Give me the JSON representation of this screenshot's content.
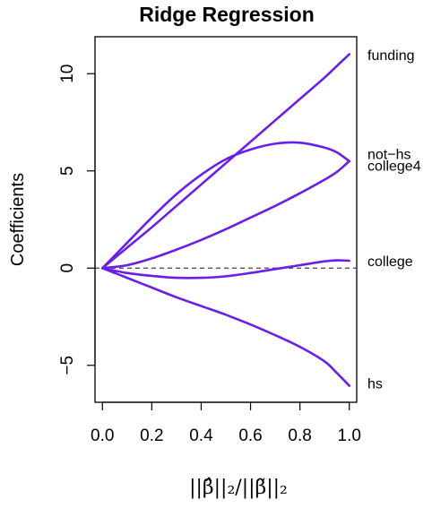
{
  "chart_data": {
    "type": "line",
    "title": "Ridge Regression",
    "xlabel": "||β̂||₂/||β̃||₂",
    "ylabel": "Coefficients",
    "xlim": [
      -0.03,
      1.03
    ],
    "ylim": [
      -6.9,
      11.9
    ],
    "x_ticks": [
      0.0,
      0.2,
      0.4,
      0.6,
      0.8,
      1.0
    ],
    "x_tick_labels": [
      "0.0",
      "0.2",
      "0.4",
      "0.6",
      "0.8",
      "1.0"
    ],
    "y_ticks": [
      -5,
      0,
      5,
      10
    ],
    "y_tick_labels": [
      "−5",
      "0",
      "5",
      "10"
    ],
    "zero_line": true,
    "line_color": "#6a1fe6",
    "x": [
      0,
      0.1,
      0.2,
      0.3,
      0.4,
      0.5,
      0.6,
      0.7,
      0.8,
      0.9,
      0.95,
      1.0
    ],
    "series": [
      {
        "name": "funding",
        "values": [
          0,
          1.05,
          2.1,
          3.2,
          4.3,
          5.4,
          6.5,
          7.6,
          8.7,
          9.8,
          10.4,
          11.0
        ]
      },
      {
        "name": "not−hs",
        "values": [
          0,
          1.3,
          2.6,
          3.8,
          4.8,
          5.6,
          6.1,
          6.4,
          6.45,
          6.2,
          5.95,
          5.5
        ]
      },
      {
        "name": "college4",
        "values": [
          0,
          0.15,
          0.5,
          0.95,
          1.45,
          2.0,
          2.6,
          3.2,
          3.85,
          4.55,
          4.95,
          5.5
        ]
      },
      {
        "name": "college",
        "values": [
          0,
          -0.25,
          -0.4,
          -0.5,
          -0.5,
          -0.42,
          -0.25,
          -0.05,
          0.15,
          0.35,
          0.4,
          0.38
        ]
      },
      {
        "name": "hs",
        "values": [
          0,
          -0.5,
          -1.0,
          -1.5,
          -1.95,
          -2.4,
          -2.9,
          -3.45,
          -4.05,
          -4.8,
          -5.4,
          -6.05
        ]
      }
    ],
    "label_y": {
      "funding": 10.9,
      "not−hs": 5.8,
      "college4": 5.2,
      "college": 0.3,
      "hs": -6.0
    }
  }
}
